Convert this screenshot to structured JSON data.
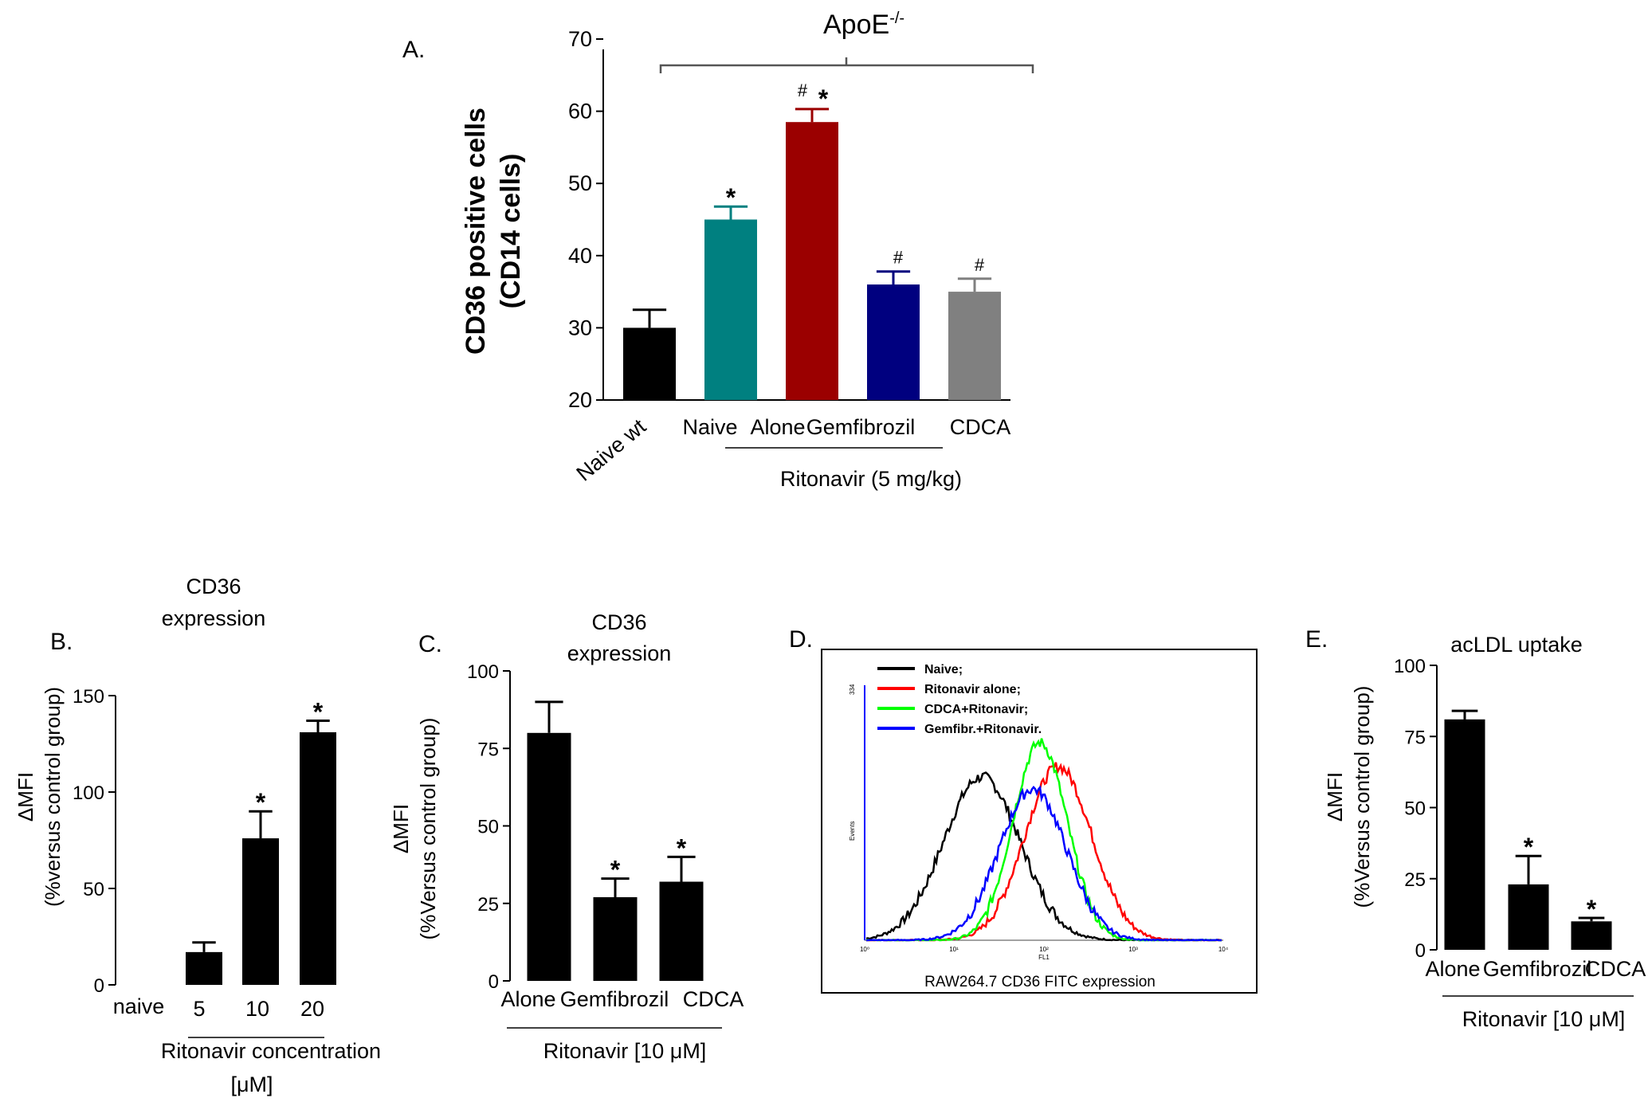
{
  "chart_data": [
    {
      "id": "A",
      "type": "bar",
      "panel_label": "A.",
      "title": "ApoE",
      "title_superscript": "-/-",
      "ylabel_line1": "CD36 positive cells",
      "ylabel_line2": "(CD14 cells)",
      "ylim": [
        20,
        70
      ],
      "yticks": [
        20,
        30,
        40,
        50,
        60,
        70
      ],
      "categories": [
        "Naive wt",
        "Naive",
        "Alone",
        "Gemfibrozil",
        "CDCA"
      ],
      "values": [
        30,
        45,
        58.5,
        36,
        35
      ],
      "errors": [
        2.5,
        1.8,
        1.8,
        1.8,
        1.8
      ],
      "colors": [
        "#000000",
        "#008080",
        "#9b0000",
        "#00007f",
        "#808080"
      ],
      "annotations": [
        "",
        "*",
        "# *",
        "#",
        "#"
      ],
      "group_label": "Ritonavir (5 mg/kg)"
    },
    {
      "id": "B",
      "type": "bar",
      "panel_label": "B.",
      "title_line1": "CD36",
      "title_line2": "expression",
      "ylabel_line1": "ΔMFI",
      "ylabel_line2": "(%versus control  group)",
      "ylim": [
        0,
        150
      ],
      "yticks": [
        0,
        50,
        100,
        150
      ],
      "categories": [
        "naive",
        "5",
        "10",
        "20"
      ],
      "values": [
        0,
        17,
        76,
        131
      ],
      "errors": [
        0,
        5,
        14,
        6
      ],
      "annotations": [
        "",
        "",
        "*",
        "*"
      ],
      "xlabel_line1": "Ritonavir concentration",
      "xlabel_line2": "[μM]"
    },
    {
      "id": "C",
      "type": "bar",
      "panel_label": "C.",
      "title_line1": "CD36",
      "title_line2": "expression",
      "ylabel_line1": "ΔMFI",
      "ylabel_line2": "(%Versus control group)",
      "ylim": [
        0,
        100
      ],
      "yticks": [
        0,
        25,
        50,
        75,
        100
      ],
      "categories": [
        "Alone",
        "Gemfibrozil",
        "CDCA"
      ],
      "values": [
        80,
        27,
        32
      ],
      "errors": [
        10,
        6,
        8
      ],
      "annotations": [
        "",
        "*",
        "*"
      ],
      "group_label": "Ritonavir [10 μM]"
    },
    {
      "id": "D",
      "type": "line",
      "panel_label": "D.",
      "xlabel": "RAW264.7 CD36 FITC expression",
      "series": [
        {
          "name": "Naive;",
          "color": "#000000"
        },
        {
          "name": "Ritonavir alone;",
          "color": "#ff0000"
        },
        {
          "name": "CDCA+Ritonavir;",
          "color": "#00ff00"
        },
        {
          "name": "Gemfibr.+Ritonavir.",
          "color": "#0000ff"
        }
      ],
      "ylabel_tiny": "Events",
      "xlabel_tiny": "FL1",
      "ytick_tiny": "334",
      "xticks_tiny": [
        "10⁰",
        "10¹",
        "10²",
        "10³",
        "10⁴"
      ]
    },
    {
      "id": "E",
      "type": "bar",
      "panel_label": "E.",
      "title": "acLDL uptake",
      "ylabel_line1": "ΔMFI",
      "ylabel_line2": "(%Versus control group)",
      "ylim": [
        0,
        100
      ],
      "yticks": [
        0,
        25,
        50,
        75,
        100
      ],
      "categories": [
        "Alone",
        "Gemfibrozil",
        "CDCA"
      ],
      "values": [
        81,
        23,
        10
      ],
      "errors": [
        3,
        10,
        1.2
      ],
      "annotations": [
        "",
        "*",
        "*"
      ],
      "group_label": "Ritonavir [10 μM]"
    }
  ]
}
